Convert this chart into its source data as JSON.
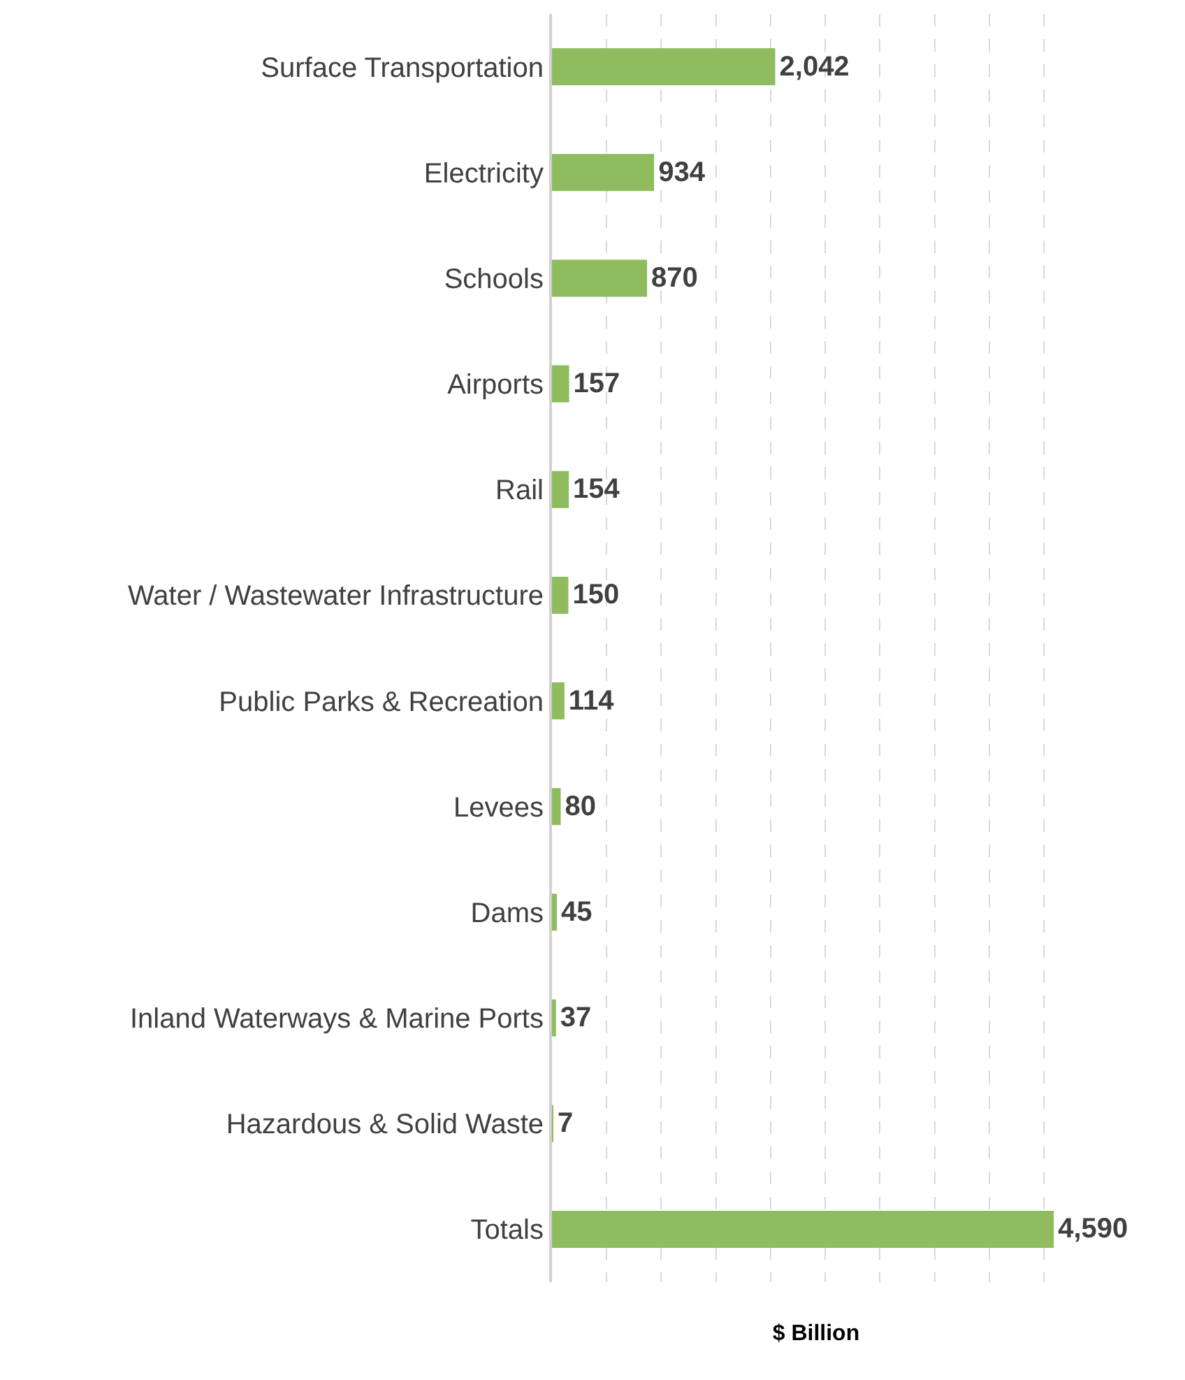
{
  "chart_data": {
    "type": "bar",
    "orientation": "horizontal",
    "xlabel": "$ Billion",
    "categories": [
      "Surface Transportation",
      "Electricity",
      "Schools",
      "Airports",
      "Rail",
      "Water / Wastewater Infrastructure",
      "Public Parks & Recreation",
      "Levees",
      "Dams",
      "Inland Waterways & Marine Ports",
      "Hazardous & Solid Waste",
      "Totals"
    ],
    "values": [
      2042,
      934,
      870,
      157,
      154,
      150,
      114,
      80,
      45,
      37,
      7,
      4590
    ],
    "value_labels": [
      "2,042",
      "934",
      "870",
      "157",
      "154",
      "150",
      "114",
      "80",
      "45",
      "37",
      "7",
      "4,590"
    ],
    "color": "#8fbc5e",
    "grid": "x",
    "tick_labels": "y"
  }
}
